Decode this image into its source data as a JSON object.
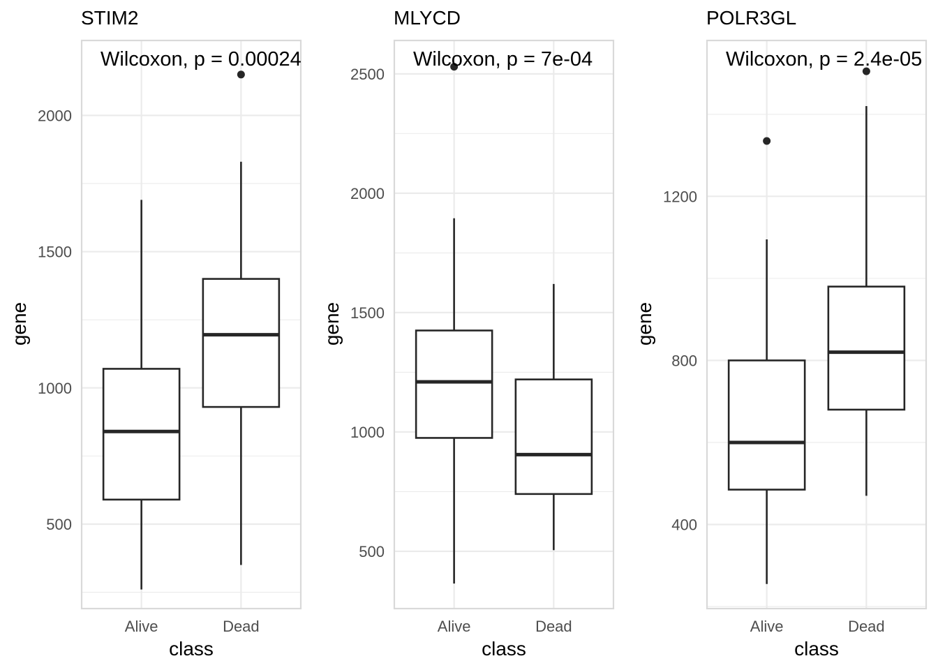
{
  "chart_data": [
    {
      "type": "box",
      "title": "STIM2",
      "annotation": "Wilcoxon, p = 0.00024",
      "xlabel": "class",
      "ylabel": "gene",
      "categories": [
        "Alive",
        "Dead"
      ],
      "ylim": [
        190,
        2275
      ],
      "y_major_ticks": [
        500,
        1000,
        1500,
        2000
      ],
      "y_minor_ticks": [
        250,
        750,
        1250,
        1750
      ],
      "tick_labels": [
        "500",
        "1000",
        "1500",
        "2000"
      ],
      "grid": true,
      "boxes": [
        {
          "category": "Alive",
          "whisker_low": 260,
          "q1": 590,
          "median": 840,
          "q3": 1070,
          "whisker_high": 1690,
          "outliers": []
        },
        {
          "category": "Dead",
          "whisker_low": 350,
          "q1": 930,
          "median": 1195,
          "q3": 1400,
          "whisker_high": 1830,
          "outliers": [
            2150
          ]
        }
      ]
    },
    {
      "type": "box",
      "title": "MLYCD",
      "annotation": "Wilcoxon, p = 7e-04",
      "xlabel": "class",
      "ylabel": "gene",
      "categories": [
        "Alive",
        "Dead"
      ],
      "ylim": [
        260,
        2640
      ],
      "y_major_ticks": [
        500,
        1000,
        1500,
        2000,
        2500
      ],
      "y_minor_ticks": [
        750,
        1250,
        1750,
        2250
      ],
      "tick_labels": [
        "500",
        "1000",
        "1500",
        "2000",
        "2500"
      ],
      "grid": true,
      "boxes": [
        {
          "category": "Alive",
          "whisker_low": 365,
          "q1": 975,
          "median": 1210,
          "q3": 1425,
          "whisker_high": 1895,
          "outliers": [
            2530
          ]
        },
        {
          "category": "Dead",
          "whisker_low": 505,
          "q1": 740,
          "median": 905,
          "q3": 1220,
          "whisker_high": 1620,
          "outliers": []
        }
      ]
    },
    {
      "type": "box",
      "title": "POLR3GL",
      "annotation": "Wilcoxon, p = 2.4e-05",
      "xlabel": "class",
      "ylabel": "gene",
      "categories": [
        "Alive",
        "Dead"
      ],
      "ylim": [
        195,
        1580
      ],
      "y_major_ticks": [
        400,
        800,
        1200
      ],
      "y_minor_ticks": [
        200,
        600,
        1000,
        1400
      ],
      "tick_labels": [
        "400",
        "800",
        "1200"
      ],
      "grid": true,
      "boxes": [
        {
          "category": "Alive",
          "whisker_low": 255,
          "q1": 485,
          "median": 600,
          "q3": 800,
          "whisker_high": 1095,
          "outliers": [
            1335
          ]
        },
        {
          "category": "Dead",
          "whisker_low": 470,
          "q1": 680,
          "median": 820,
          "q3": 980,
          "whisker_high": 1420,
          "outliers": [
            1505
          ]
        }
      ]
    }
  ]
}
